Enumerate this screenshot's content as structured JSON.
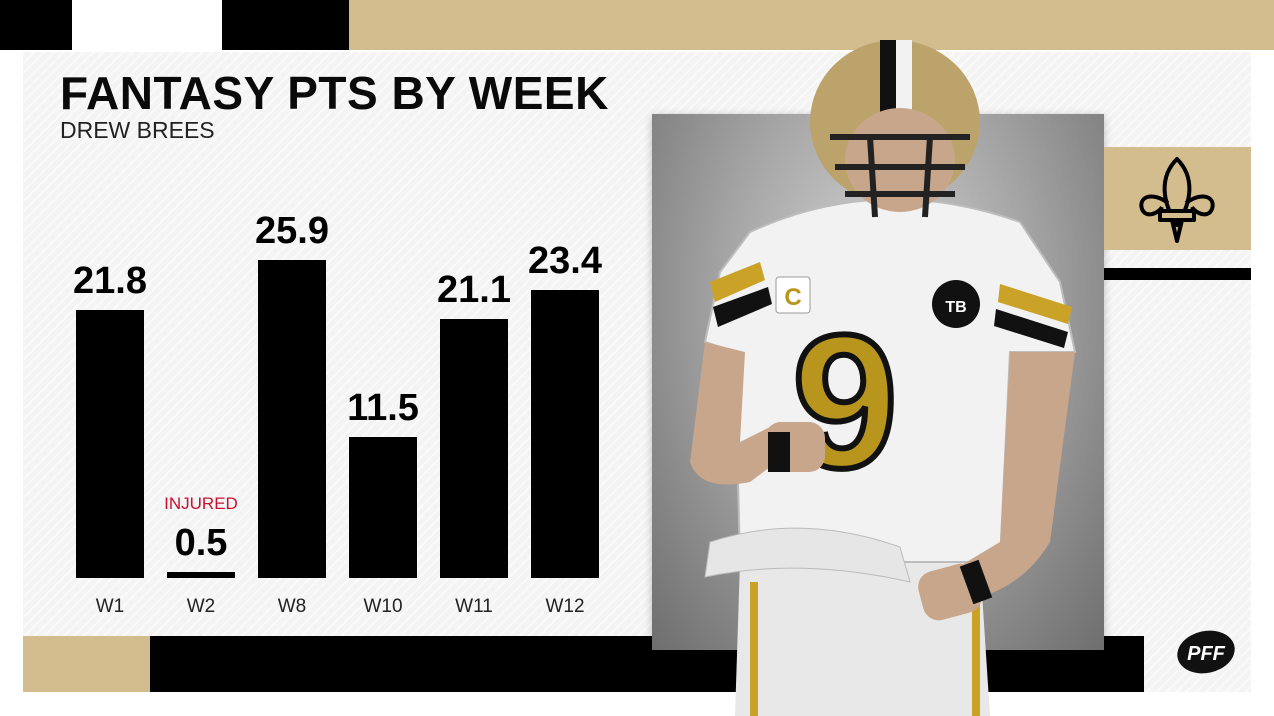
{
  "colors": {
    "gold": "#d3bc8d",
    "black": "#000000",
    "red": "#c8102e",
    "panel": "#f4f4f4"
  },
  "header": {
    "title": "FANTASY PTS BY WEEK",
    "subtitle": "DREW BREES"
  },
  "chart_data": {
    "type": "bar",
    "title": "FANTASY PTS BY WEEK",
    "subtitle": "DREW BREES",
    "categories": [
      "W1",
      "W2",
      "W8",
      "W10",
      "W11",
      "W12"
    ],
    "values": [
      21.8,
      0.5,
      25.9,
      11.5,
      21.1,
      23.4
    ],
    "value_labels": [
      "21.8",
      "0.5",
      "25.9",
      "11.5",
      "21.1",
      "23.4"
    ],
    "annotations": [
      {
        "category": "W2",
        "text": "INJURED"
      }
    ],
    "ylim": [
      0,
      27
    ],
    "grid": false
  },
  "team_logo": {
    "icon": "fleur-de-lis-icon"
  },
  "brand": {
    "text": "PFF"
  },
  "player_image": {
    "jersey_number": "9",
    "captain_patch": "C",
    "memorial_patch": "TB"
  }
}
